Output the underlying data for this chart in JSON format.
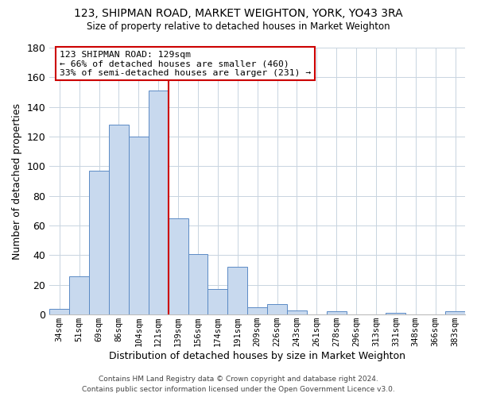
{
  "title": "123, SHIPMAN ROAD, MARKET WEIGHTON, YORK, YO43 3RA",
  "subtitle": "Size of property relative to detached houses in Market Weighton",
  "xlabel": "Distribution of detached houses by size in Market Weighton",
  "ylabel": "Number of detached properties",
  "bar_color": "#c8d9ee",
  "bar_edge_color": "#5b8ac5",
  "bin_labels": [
    "34sqm",
    "51sqm",
    "69sqm",
    "86sqm",
    "104sqm",
    "121sqm",
    "139sqm",
    "156sqm",
    "174sqm",
    "191sqm",
    "209sqm",
    "226sqm",
    "243sqm",
    "261sqm",
    "278sqm",
    "296sqm",
    "313sqm",
    "331sqm",
    "348sqm",
    "366sqm",
    "383sqm"
  ],
  "bar_values": [
    4,
    26,
    97,
    128,
    120,
    151,
    65,
    41,
    17,
    32,
    5,
    7,
    3,
    0,
    2,
    0,
    0,
    1,
    0,
    0,
    2
  ],
  "ylim": [
    0,
    180
  ],
  "yticks": [
    0,
    20,
    40,
    60,
    80,
    100,
    120,
    140,
    160,
    180
  ],
  "red_line_color": "#cc0000",
  "annotation_box_edge": "#cc0000",
  "annotation_title": "123 SHIPMAN ROAD: 129sqm",
  "annotation_line1": "← 66% of detached houses are smaller (460)",
  "annotation_line2": "33% of semi-detached houses are larger (231) →",
  "footer1": "Contains HM Land Registry data © Crown copyright and database right 2024.",
  "footer2": "Contains public sector information licensed under the Open Government Licence v3.0.",
  "background_color": "#ffffff",
  "grid_color": "#c8d4e0"
}
